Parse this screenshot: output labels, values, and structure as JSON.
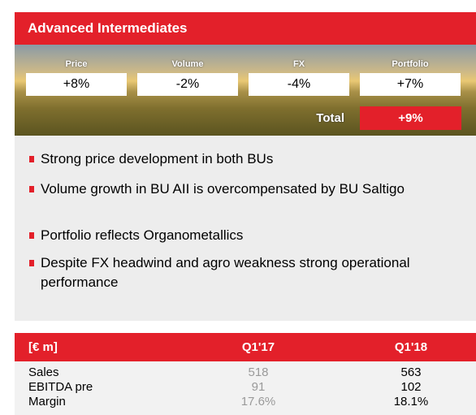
{
  "header": {
    "title": "Advanced Intermediates"
  },
  "drivers": [
    {
      "label": "Price",
      "value": "+8%"
    },
    {
      "label": "Volume",
      "value": "-2%"
    },
    {
      "label": "FX",
      "value": "-4%"
    },
    {
      "label": "Portfolio",
      "value": "+7%"
    }
  ],
  "total": {
    "label": "Total",
    "value": "+9%"
  },
  "bullets": [
    "Strong price development in both BUs",
    "Volume growth in BU AII is overcompensated by BU Saltigo",
    "Portfolio reflects Organometallics",
    "Despite FX headwind and agro weakness strong operational performance"
  ],
  "table": {
    "header": [
      "[€ m]",
      "Q1'17",
      "Q1'18"
    ],
    "rows": [
      [
        "Sales",
        "518",
        "563"
      ],
      [
        "EBITDA pre",
        "91",
        "102"
      ],
      [
        "Margin",
        "17.6%",
        "18.1%"
      ]
    ]
  }
}
